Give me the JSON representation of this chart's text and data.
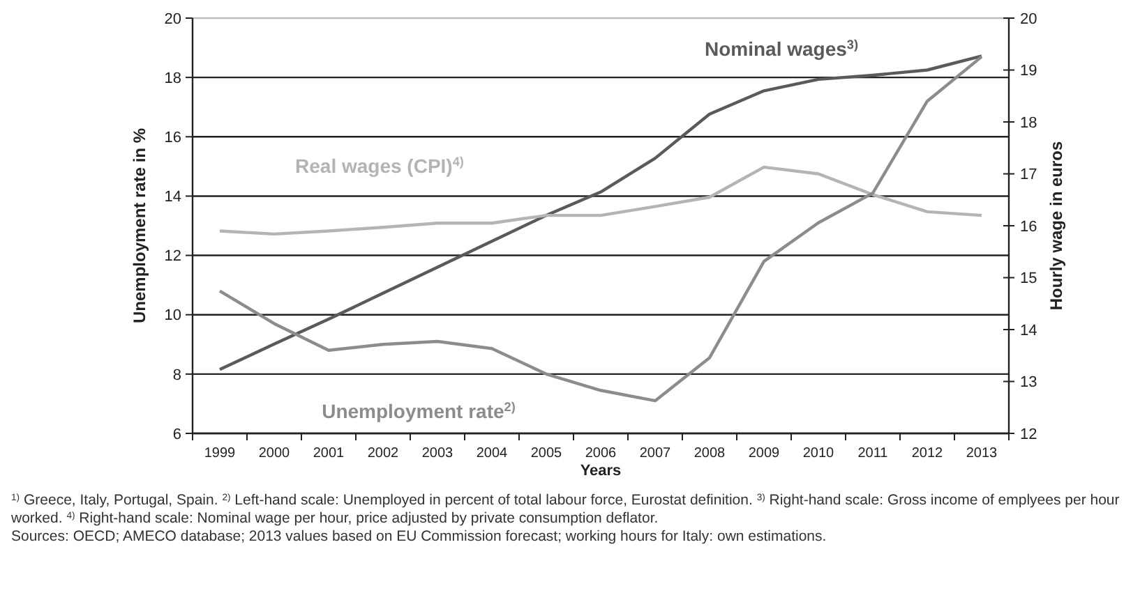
{
  "chart_data": {
    "type": "line",
    "xlabel": "Years",
    "ylabel": "Unemployment rate in %",
    "y2label": "Hourly wage in euros",
    "categories": [
      "1999",
      "2000",
      "2001",
      "2002",
      "2003",
      "2004",
      "2005",
      "2006",
      "2007",
      "2008",
      "2009",
      "2010",
      "2011",
      "2012",
      "2013"
    ],
    "series": [
      {
        "name": "Nominal wages$^{3)}$",
        "color": "#5a5a5a",
        "axis": "y2",
        "values": [
          13.23,
          13.72,
          14.2,
          14.7,
          15.2,
          15.7,
          16.2,
          16.65,
          17.3,
          18.15,
          18.6,
          18.82,
          18.9,
          19.0,
          19.27
        ]
      },
      {
        "name": "Real wages (CPI)$^{4)}$",
        "color": "#b4b4b4",
        "axis": "y2",
        "values": [
          15.9,
          15.84,
          15.9,
          15.97,
          16.05,
          16.05,
          16.2,
          16.2,
          16.37,
          16.55,
          17.13,
          17.0,
          16.6,
          16.27,
          16.2
        ]
      },
      {
        "name": "Unemployment rate$^{2)}$",
        "color": "#8c8c8c",
        "values": [
          10.8,
          9.7,
          8.8,
          9.0,
          9.1,
          8.86,
          8.0,
          7.45,
          7.1,
          8.55,
          11.8,
          13.1,
          14.1,
          17.2,
          18.7
        ]
      }
    ],
    "ylim": [
      6,
      20
    ],
    "yticks": [
      6,
      8,
      10,
      12,
      14,
      16,
      18,
      20
    ],
    "y2lim": [
      12,
      20
    ],
    "y2ticks": [
      12,
      13,
      14,
      15,
      16,
      17,
      18,
      19,
      20
    ],
    "grid": "y",
    "marker": "none",
    "line_style": "solid",
    "annotations": [
      "$^{1)}$ Greece, Italy, Portugal, Spain. $^{2)}$ Left-hand scale: Unemployed in percent of total labour force, Eurostat definition. $^{3)}$ Right-hand scale: Gross income of emplyees per hour worked. $^{4)}$ Right-hand scale: Nominal wage per hour, price adjusted by private consumption deflator.",
      "Sources: OECD; AMECO database; 2013 values based on EU Commission forecast; working hours for Italy: own estimations."
    ]
  }
}
